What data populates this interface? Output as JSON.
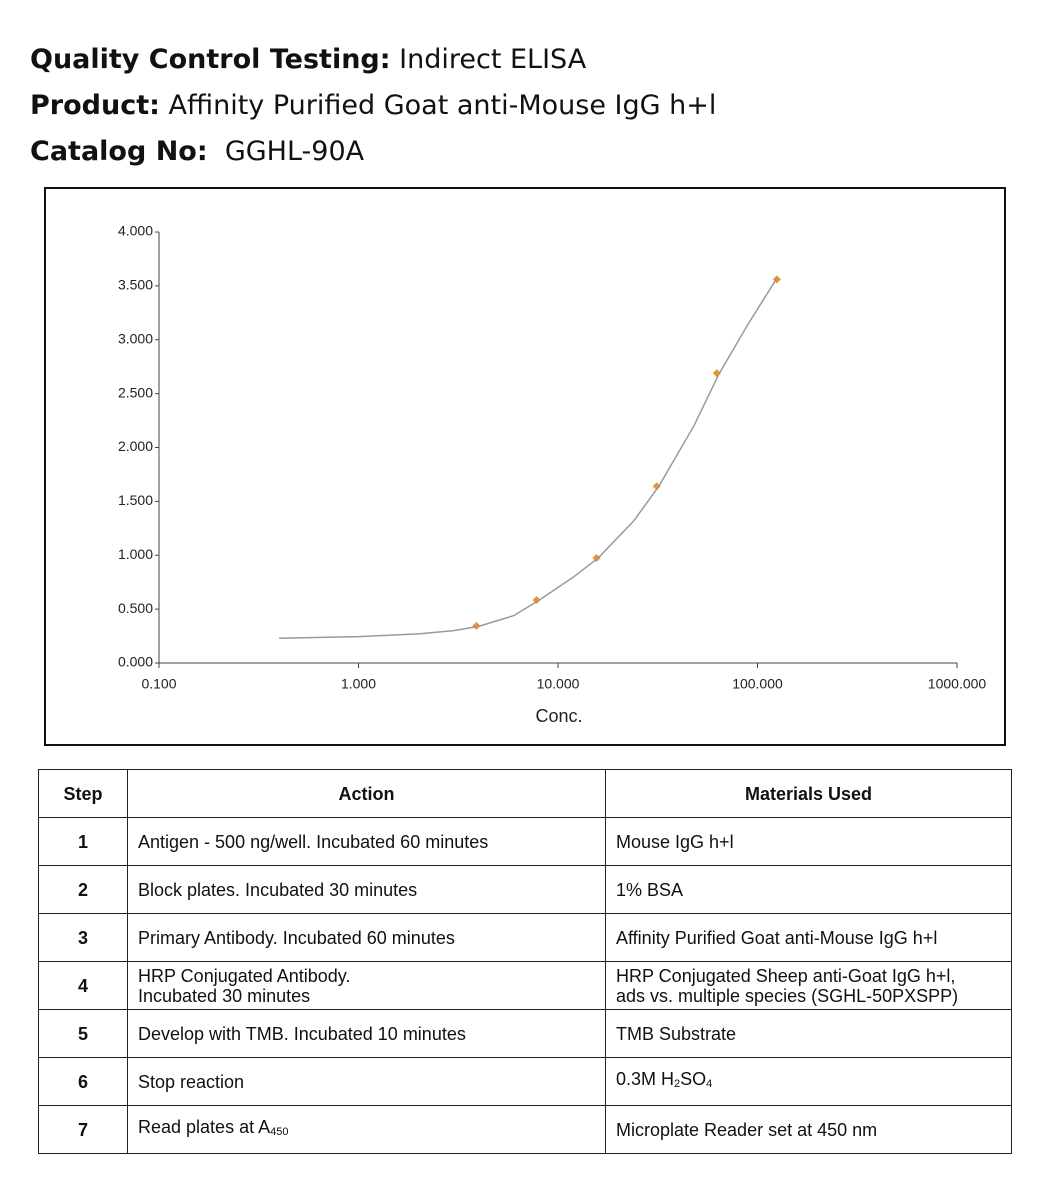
{
  "header": {
    "lines": [
      {
        "label": "Quality Control Testing:",
        "value": "Indirect ELISA"
      },
      {
        "label": "Product:",
        "value": "Affinity Purified Goat anti-Mouse IgG h+l"
      },
      {
        "label": "Catalog No:",
        "value": "GGHL-90A"
      }
    ]
  },
  "chart_data": {
    "type": "scatter",
    "xlabel": "Conc.",
    "xscale": "log",
    "xlim": [
      0.1,
      1000
    ],
    "ylim": [
      0,
      4
    ],
    "xticks": [
      {
        "value": 0.1,
        "label": "0.100"
      },
      {
        "value": 1,
        "label": "1.000"
      },
      {
        "value": 10,
        "label": "10.000"
      },
      {
        "value": 100,
        "label": "100.000"
      },
      {
        "value": 1000,
        "label": "1000.000"
      }
    ],
    "yticks": [
      {
        "value": 0,
        "label": "0.000"
      },
      {
        "value": 0.5,
        "label": "0.500"
      },
      {
        "value": 1,
        "label": "1.000"
      },
      {
        "value": 1.5,
        "label": "1.500"
      },
      {
        "value": 2,
        "label": "2.000"
      },
      {
        "value": 2.5,
        "label": "2.500"
      },
      {
        "value": 3,
        "label": "3.000"
      },
      {
        "value": 3.5,
        "label": "3.500"
      },
      {
        "value": 4,
        "label": "4.000"
      }
    ],
    "series": [
      {
        "mode": "markers",
        "color": "#f0912c",
        "x": [
          3.9,
          7.8,
          15.6,
          31.25,
          62.5,
          125
        ],
        "values": [
          0.345,
          0.585,
          0.975,
          1.64,
          2.69,
          3.56
        ]
      },
      {
        "mode": "line",
        "color": "#9a9a9a",
        "x": [
          0.4,
          1,
          2,
          3,
          4,
          6,
          8,
          12,
          16,
          24,
          32,
          48,
          64,
          90,
          125
        ],
        "values": [
          0.23,
          0.245,
          0.27,
          0.3,
          0.34,
          0.44,
          0.58,
          0.8,
          0.98,
          1.32,
          1.64,
          2.2,
          2.68,
          3.15,
          3.57
        ]
      }
    ]
  },
  "table": {
    "columns": [
      "Step",
      "Action",
      "Materials Used"
    ],
    "rows": [
      [
        "1",
        "Antigen - 500 ng/well. Incubated 60 minutes",
        "Mouse IgG h+l"
      ],
      [
        "2",
        "Block plates. Incubated 30 minutes",
        "1% BSA"
      ],
      [
        "3",
        "Primary Antibody.  Incubated 60 minutes",
        "Affinity Purified Goat anti-Mouse IgG h+l"
      ],
      [
        "4",
        "HRP Conjugated Antibody.\nIncubated 30 minutes",
        "HRP Conjugated Sheep anti-Goat IgG h+l,\nads vs. multiple species (SGHL-50PXSPP)"
      ],
      [
        "5",
        "Develop with TMB.  Incubated 10 minutes",
        "TMB Substrate"
      ],
      [
        "6",
        "Stop reaction",
        {
          "parts": [
            "0.3M H",
            "2",
            "SO",
            "4"
          ]
        }
      ],
      [
        "7",
        {
          "parts": [
            "Read plates at A",
            "450"
          ]
        },
        "Microplate Reader set at 450 nm"
      ]
    ]
  }
}
